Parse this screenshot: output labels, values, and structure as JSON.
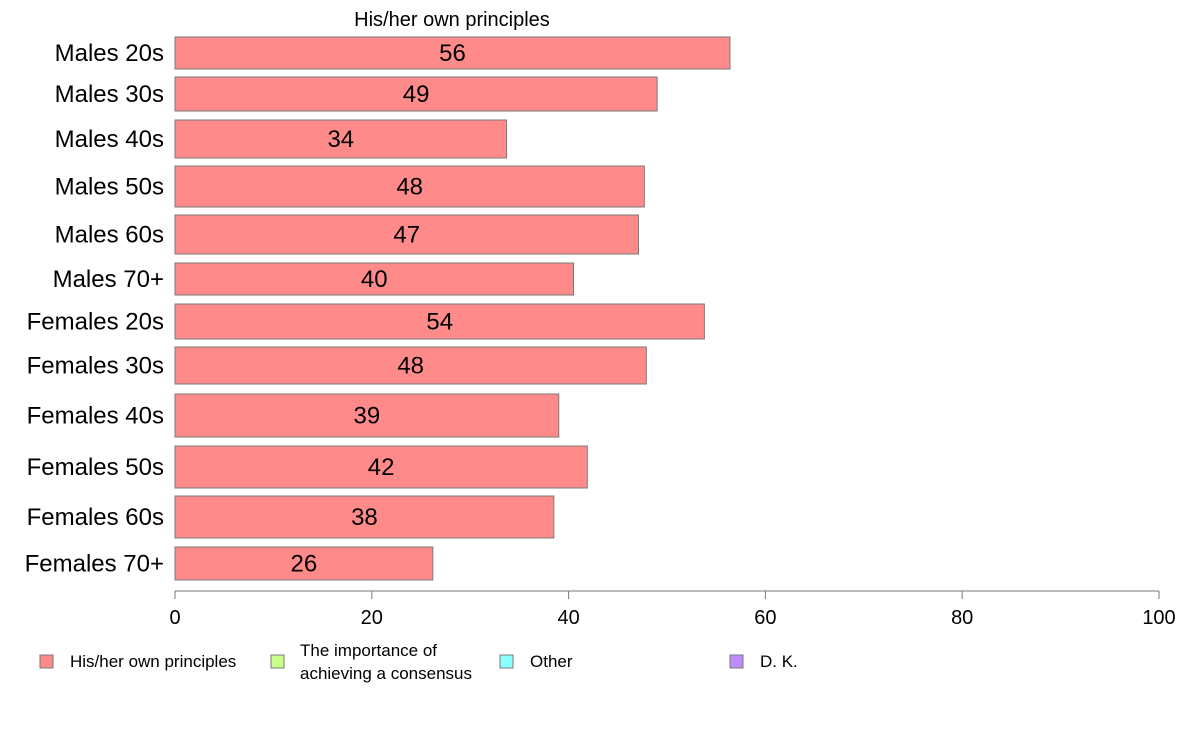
{
  "chart_data": {
    "type": "bar",
    "orientation": "horizontal",
    "title": "His/her own principles",
    "xlabel": "",
    "ylabel": "",
    "xlim": [
      0,
      100
    ],
    "x_ticks": [
      0,
      20,
      40,
      60,
      80,
      100
    ],
    "grid": false,
    "categories": [
      "Males 20s",
      "Males 30s",
      "Males 40s",
      "Males 50s",
      "Males 60s",
      "Males 70+",
      "Females 20s",
      "Females 30s",
      "Females 40s",
      "Females 50s",
      "Females 60s",
      "Females 70+"
    ],
    "series": [
      {
        "name": "His/her own principles",
        "color": "#ff8a8a",
        "values": [
          56.4,
          49.0,
          33.7,
          47.7,
          47.1,
          40.5,
          53.8,
          47.9,
          39.0,
          41.9,
          38.5,
          26.2
        ],
        "labels": [
          "56",
          "49",
          "34",
          "48",
          "47",
          "40",
          "54",
          "48",
          "39",
          "42",
          "38",
          "26"
        ]
      }
    ],
    "legend_position": "bottom",
    "legend": [
      {
        "label": "His/her own principles",
        "color": "#ff8a8a",
        "lines": [
          "His/her own principles"
        ]
      },
      {
        "label": "The importance of achieving a consensus",
        "color": "#c8ff8a",
        "lines": [
          "The importance of",
          "achieving a consensus"
        ]
      },
      {
        "label": "Other",
        "color": "#8affff",
        "lines": [
          "Other"
        ]
      },
      {
        "label": "D. K.",
        "color": "#c08aff",
        "lines": [
          "D. K."
        ]
      }
    ]
  }
}
